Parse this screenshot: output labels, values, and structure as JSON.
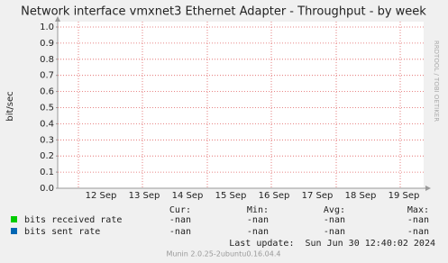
{
  "chart_data": {
    "type": "line",
    "title": "Network interface vmxnet3 Ethernet Adapter - Throughput - by week",
    "y_label": "bit/sec",
    "categories": [
      "12 Sep",
      "13 Sep",
      "14 Sep",
      "15 Sep",
      "16 Sep",
      "17 Sep",
      "18 Sep",
      "19 Sep"
    ],
    "series": [
      {
        "name": "bits received rate",
        "color": "#00cc00",
        "values": [
          null,
          null,
          null,
          null,
          null,
          null,
          null,
          null
        ]
      },
      {
        "name": "bits sent rate",
        "color": "#0066b3",
        "values": [
          null,
          null,
          null,
          null,
          null,
          null,
          null,
          null
        ]
      }
    ],
    "ylim": [
      0,
      1
    ],
    "yticks": [
      {
        "value": 0,
        "label": "0.0"
      },
      0.1,
      0.2,
      0.3,
      0.4,
      0.5,
      0.6,
      0.7,
      0.8,
      0.9,
      {
        "value": 1,
        "label": "1.0"
      }
    ],
    "grid": true
  },
  "legend_table": {
    "headers": [
      "Cur:",
      "Min:",
      "Avg:",
      "Max:"
    ],
    "rows": [
      [
        "-nan",
        "-nan",
        "-nan",
        "-nan"
      ],
      [
        "-nan",
        "-nan",
        "-nan",
        "-nan"
      ]
    ]
  },
  "watermark": "RRDTOOL / TOBI OETIKER",
  "last_update": "Last update:  Sun Jun 30 12:40:02 2024",
  "version": "Munin 2.0.25-2ubuntu0.16.04.4"
}
